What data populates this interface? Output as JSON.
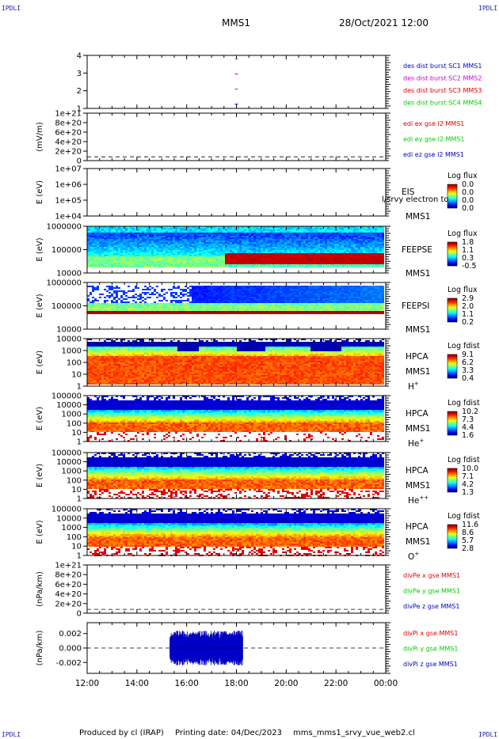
{
  "corner_label": "IPDLI",
  "header": {
    "spacecraft": "MMS1",
    "datetime": "28/Oct/2021 12:00"
  },
  "footer": {
    "produced": "Produced by cl (IRAP)",
    "printing": "Printing date: 04/Dec/2023",
    "file": "mms_mms1_srvy_vue_web2.cl"
  },
  "colors": {
    "red": "#e00000",
    "green": "#00cc00",
    "blue": "#0000c8",
    "magenta": "#d000d0"
  },
  "chart_data": {
    "type": "multi-panel time series / spectrogram",
    "x": {
      "range": [
        "12:00",
        "00:00"
      ],
      "ticks": [
        "12:00",
        "14:00",
        "16:00",
        "18:00",
        "20:00",
        "22:00",
        "00:00"
      ]
    },
    "panels": [
      {
        "id": "burst",
        "type": "scatter",
        "yticks": [
          "1",
          "2",
          "3",
          "4"
        ],
        "legend": [
          {
            "text": "des dist burst SC1 MMS1",
            "color": "blue"
          },
          {
            "text": "des dist burst SC2 MMS2",
            "color": "magenta"
          },
          {
            "text": "des dist burst SC3 MMS3",
            "color": "red"
          },
          {
            "text": "des dist burst SC4 MMS4",
            "color": "green"
          }
        ],
        "series": [
          {
            "y": 1,
            "x": [
              "18:00"
            ],
            "color": "blue"
          },
          {
            "y": 2,
            "x": [
              "18:00"
            ],
            "color": "magenta"
          },
          {
            "y": 3,
            "x": [
              "18:00"
            ],
            "color": "red"
          },
          {
            "y": 4,
            "x": [
              "18:00"
            ],
            "color": "green"
          }
        ]
      },
      {
        "id": "edi",
        "type": "line",
        "ylabel": "(mV/m)",
        "yticks": [
          "0",
          "2e+20",
          "4e+20",
          "6e+20",
          "8e+20",
          "1e+21"
        ],
        "legend": [
          {
            "text": "edi ex gse l2 MMS1",
            "color": "red"
          },
          {
            "text": "edi ey gse l2 MMS1",
            "color": "green"
          },
          {
            "text": "edi ez gse l2 MMS1",
            "color": "blue"
          }
        ]
      },
      {
        "id": "eis",
        "type": "heatmap",
        "ylabel": "E (eV)",
        "yticks": [
          "1e+04",
          "1e+05",
          "1e+06",
          "1e+07"
        ],
        "labels": [
          "EIS",
          "MMS1"
        ],
        "overlay_text": "l/srvy electron to",
        "cbar_title": "Log flux",
        "cbar_ticks": [
          "0.0",
          "0.0",
          "0.0",
          "0.0"
        ]
      },
      {
        "id": "feepse",
        "type": "heatmap",
        "ylabel": "E (eV)",
        "yticks": [
          "10000",
          "100000",
          "1000000"
        ],
        "labels": [
          "FEEPSE",
          "MMS1"
        ],
        "cbar_title": "Log flux",
        "cbar_ticks": [
          "1.8",
          "1.1",
          "0.3",
          "-0.5"
        ]
      },
      {
        "id": "feepsi",
        "type": "heatmap",
        "ylabel": "E (eV)",
        "yticks": [
          "10000",
          "100000",
          "1000000"
        ],
        "labels": [
          "FEEPSI",
          "MMS1"
        ],
        "cbar_title": "Log flux",
        "cbar_ticks": [
          "2.9",
          "2.0",
          "1.1",
          "0.2"
        ]
      },
      {
        "id": "hpca_h",
        "type": "heatmap",
        "ylabel": "E (eV)",
        "yticks": [
          "1",
          "10",
          "100",
          "1000",
          "10000"
        ],
        "labels": [
          "HPCA",
          "MMS1"
        ],
        "species": "H",
        "charge": "+",
        "cbar_title": "Log fdist",
        "cbar_ticks": [
          "9.1",
          "6.2",
          "3.3",
          "0.4"
        ]
      },
      {
        "id": "hpca_he1",
        "type": "heatmap",
        "ylabel": "E (eV)",
        "yticks": [
          "1",
          "10",
          "100",
          "1000",
          "10000",
          "100000"
        ],
        "labels": [
          "HPCA",
          "MMS1"
        ],
        "species": "He",
        "charge": "+",
        "cbar_title": "Log fdist",
        "cbar_ticks": [
          "10.2",
          "7.3",
          "4.4",
          "1.6"
        ]
      },
      {
        "id": "hpca_he2",
        "type": "heatmap",
        "ylabel": "E (eV)",
        "yticks": [
          "1",
          "10",
          "100",
          "1000",
          "10000",
          "100000"
        ],
        "labels": [
          "HPCA",
          "MMS1"
        ],
        "species": "He",
        "charge": "++",
        "cbar_title": "Log fdist",
        "cbar_ticks": [
          "10.0",
          "7.1",
          "4.2",
          "1.3"
        ]
      },
      {
        "id": "hpca_o",
        "type": "heatmap",
        "ylabel": "E (eV)",
        "yticks": [
          "1",
          "10",
          "100",
          "1000",
          "10000",
          "100000"
        ],
        "labels": [
          "HPCA",
          "MMS1"
        ],
        "species": "O",
        "charge": "+",
        "cbar_title": "Log fdist",
        "cbar_ticks": [
          "11.6",
          "8.6",
          "5.7",
          "2.8"
        ]
      },
      {
        "id": "divpe",
        "type": "line",
        "ylabel": "(nPa/km)",
        "yticks": [
          "0",
          "2e+20",
          "4e+20",
          "6e+20",
          "8e+20",
          "1e+21"
        ],
        "legend": [
          {
            "text": "divPe x gse MMS1",
            "color": "red"
          },
          {
            "text": "divPe y gse MMS1",
            "color": "green"
          },
          {
            "text": "divPe z gse MMS1",
            "color": "blue"
          }
        ]
      },
      {
        "id": "divpi",
        "type": "line",
        "ylabel": "(nPa/km)",
        "yticks": [
          "-0.002",
          "0.000",
          "0.002"
        ],
        "ylim": [
          -0.0035,
          0.0035
        ],
        "legend": [
          {
            "text": "divPi x gse MMS1",
            "color": "red"
          },
          {
            "text": "divPi y gse MMS1",
            "color": "green"
          },
          {
            "text": "divPi z gse MMS1",
            "color": "blue"
          }
        ],
        "data_span": [
          "15:20",
          "18:15"
        ],
        "noise_amplitude": 0.002
      }
    ]
  }
}
